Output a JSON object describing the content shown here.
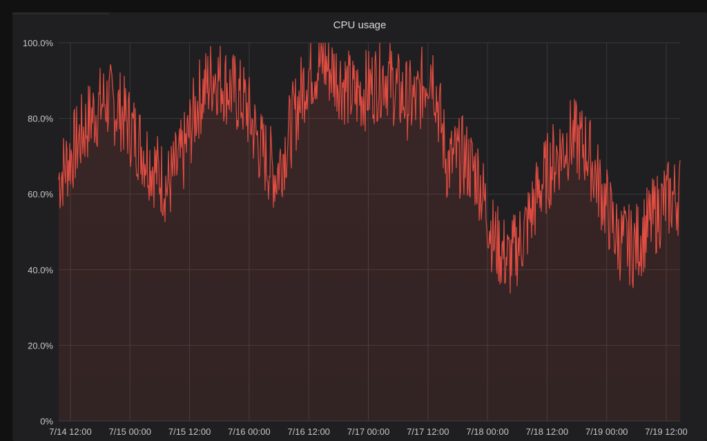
{
  "panel": {
    "title": "CPU usage"
  },
  "chart_data": {
    "type": "area",
    "title": "CPU usage",
    "xlabel": "",
    "ylabel": "",
    "ylim": [
      0,
      100
    ],
    "y_ticks": [
      "0%",
      "20.0%",
      "40.0%",
      "60.0%",
      "80.0%",
      "100.0%"
    ],
    "x_ticks": [
      "7/14 12:00",
      "7/15 00:00",
      "7/15 12:00",
      "7/16 00:00",
      "7/16 12:00",
      "7/17 00:00",
      "7/17 12:00",
      "7/18 00:00",
      "7/18 12:00",
      "7/19 00:00",
      "7/19 12:00"
    ],
    "x_start": "7/14 12:00",
    "x_end": "7/19 12:00",
    "grid": true,
    "line_color": "#e24d42",
    "fill_color": "#e24d42",
    "series": [
      {
        "x": [
          "7/14 12:00",
          "7/14 15:00",
          "7/14 18:00",
          "7/14 21:00",
          "7/15 00:00",
          "7/15 03:00",
          "7/15 06:00",
          "7/15 09:00",
          "7/15 12:00",
          "7/15 15:00",
          "7/15 18:00",
          "7/15 21:00",
          "7/16 00:00",
          "7/16 03:00",
          "7/16 06:00",
          "7/16 09:00",
          "7/16 12:00",
          "7/16 15:00",
          "7/16 18:00",
          "7/16 21:00",
          "7/17 00:00",
          "7/17 03:00",
          "7/17 06:00",
          "7/17 09:00",
          "7/17 12:00",
          "7/17 15:00",
          "7/17 18:00",
          "7/17 21:00",
          "7/18 00:00",
          "7/18 03:00",
          "7/18 06:00",
          "7/18 09:00",
          "7/18 12:00",
          "7/18 15:00",
          "7/18 18:00",
          "7/18 21:00",
          "7/19 00:00",
          "7/19 03:00",
          "7/19 06:00",
          "7/19 09:00",
          "7/19 12:00"
        ],
        "values": [
          64,
          72,
          80,
          85,
          82,
          75,
          68,
          62,
          70,
          85,
          92,
          88,
          84,
          72,
          65,
          78,
          92,
          95,
          91,
          86,
          88,
          92,
          86,
          84,
          95,
          68,
          70,
          65,
          48,
          42,
          50,
          62,
          70,
          75,
          72,
          60,
          48,
          46,
          52,
          58,
          60
        ]
      }
    ]
  }
}
